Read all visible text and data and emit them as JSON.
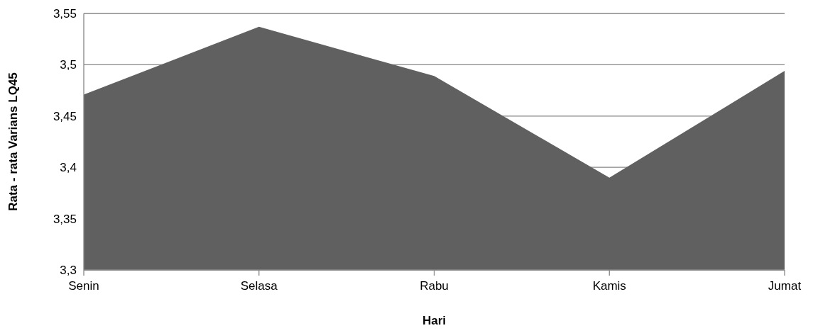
{
  "chart_data": {
    "type": "area",
    "xlabel": "Hari",
    "ylabel": "Rata - rata Varians LQ45",
    "categories": [
      "Senin",
      "Selasa",
      "Rabu",
      "Kamis",
      "Jumat"
    ],
    "series": [
      {
        "color": "#606060",
        "values": [
          3.471,
          3.537,
          3.489,
          3.39,
          3.494
        ]
      }
    ],
    "ylim": [
      3.3,
      3.55
    ],
    "yticks": [
      {
        "value": 3.3,
        "label": "3,3"
      },
      {
        "value": 3.35,
        "label": "3,35"
      },
      {
        "value": 3.4,
        "label": "3,4"
      },
      {
        "value": 3.45,
        "label": "3,45"
      },
      {
        "value": 3.5,
        "label": "3,5"
      },
      {
        "value": 3.55,
        "label": "3,55"
      }
    ],
    "grid": "y"
  }
}
